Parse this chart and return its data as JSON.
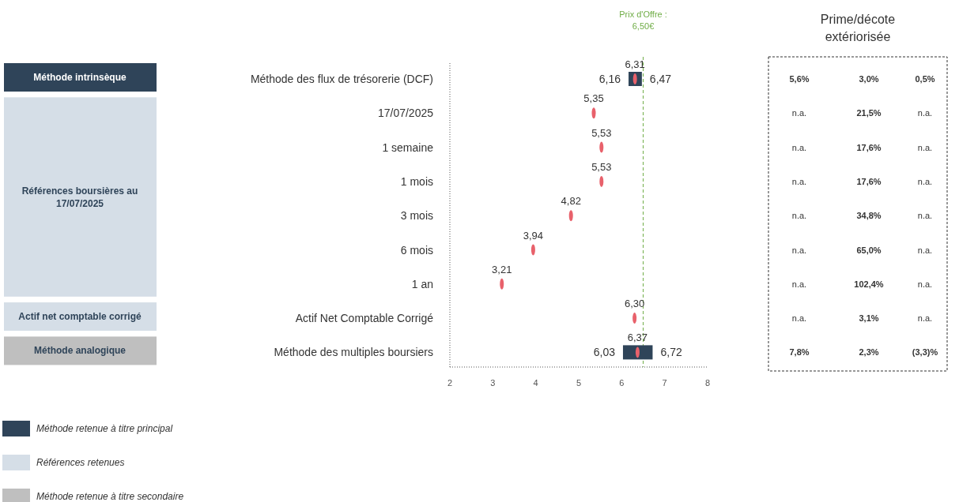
{
  "chart_data": {
    "type": "bar",
    "orientation": "horizontal",
    "categories": [
      "Méthode des flux de trésorerie (DCF)",
      "17/07/2025",
      "1 semaine",
      "1 mois",
      "3 mois",
      "6 mois",
      "1 an",
      "Actif Net Comptable Corrigé",
      "Méthode des multiples boursiers"
    ],
    "series": [
      {
        "color": "#2f4459",
        "base": [
          6.16,
          null,
          null,
          null,
          null,
          null,
          null,
          null,
          6.03
        ],
        "values": [
          0.31,
          null,
          null,
          null,
          null,
          null,
          null,
          null,
          0.69
        ]
      },
      {
        "type": "scatter",
        "color": "#e8616b",
        "values": [
          6.31,
          5.35,
          5.53,
          5.53,
          4.82,
          3.94,
          3.21,
          6.3,
          6.37
        ],
        "value_labels": [
          "6,31",
          "5,35",
          "5,53",
          "5,53",
          "4,82",
          "3,94",
          "3,21",
          "6,30",
          "6,37"
        ]
      }
    ],
    "xlim": [
      2,
      8
    ],
    "xticks": [
      2,
      3,
      4,
      5,
      6,
      7,
      8
    ],
    "grid": false,
    "ref_lines": [
      {
        "axis": "x",
        "value": 6.5,
        "label": "Prix d'Offre : 6,50€",
        "color": "#70ad47",
        "line_style": "dashed"
      }
    ],
    "annotations": [
      {
        "text": "6,16",
        "x": 6.16,
        "y": "Méthode des flux de trésorerie (DCF)"
      },
      {
        "text": "6,47",
        "x": 6.47,
        "y": "Méthode des flux de trésorerie (DCF)"
      },
      {
        "text": "6,03",
        "x": 6.03,
        "y": "Méthode des multiples boursiers"
      },
      {
        "text": "6,72",
        "x": 6.72,
        "y": "Méthode des multiples boursiers"
      },
      "Méthode intrinsèque",
      "Références boursières au 17/07/2025",
      "Actif net comptable corrigé",
      "Méthode analogique",
      "Méthode retenue à titre principal",
      "Références retenues",
      "Méthode retenue à titre secondaire",
      "Prime/décote extériorisée",
      "5,6%",
      "3,0%",
      "0,5%",
      "n.a.",
      "21,5%",
      "n.a.",
      "n.a.",
      "17,6%",
      "n.a.",
      "n.a.",
      "17,6%",
      "n.a.",
      "n.a.",
      "34,8%",
      "n.a.",
      "n.a.",
      "65,0%",
      "n.a.",
      "n.a.",
      "102,4%",
      "n.a.",
      "n.a.",
      "3,1%",
      "n.a.",
      "7,8%",
      "2,3%",
      "(3,3)%"
    ]
  }
}
